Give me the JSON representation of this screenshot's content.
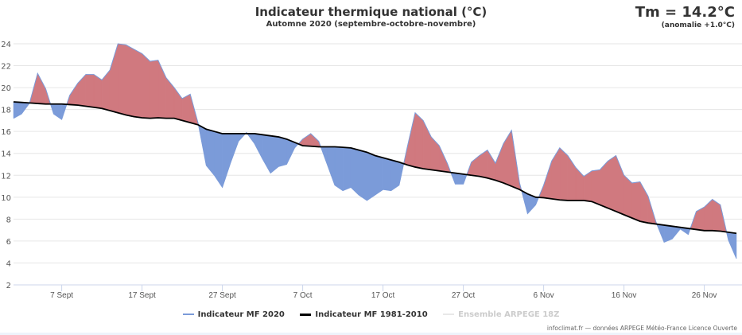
{
  "header": {
    "title": "Indicateur thermique national (°C)",
    "subtitle": "Automne 2020 (septembre-octobre-novembre)",
    "tm_label": "Tm = 14.2°C",
    "anomaly_label": "(anomalie +1.0°C)"
  },
  "legend": [
    {
      "label": "Indicateur MF 2020",
      "color": "#7b9bd9",
      "text_color": "#333333"
    },
    {
      "label": "Indicateur MF 1981-2010",
      "color": "#000000",
      "text_color": "#333333"
    },
    {
      "label": "Ensemble ARPEGE 18Z",
      "color": "#e8e8e8",
      "text_color": "#cccccc"
    }
  ],
  "credits": "infoclimat.fr — données ARPEGE Météo-France Licence Ouverte",
  "colors": {
    "above": "#d0797f",
    "below": "#7b9bd9",
    "normal_line": "#000000",
    "grid": "#e6e6e6"
  },
  "chart_data": {
    "type": "area",
    "title": "Indicateur thermique national (°C)",
    "subtitle": "Automne 2020 (septembre-octobre-novembre)",
    "xlabel": "",
    "ylabel": "",
    "ylim": [
      2,
      24
    ],
    "yticks": [
      2,
      4,
      6,
      8,
      10,
      12,
      14,
      16,
      18,
      20,
      22,
      24
    ],
    "x_start": "1 Sept",
    "x_day_count": 91,
    "xticks": [
      {
        "day": 7,
        "label": "7 Sept"
      },
      {
        "day": 17,
        "label": "17 Sept"
      },
      {
        "day": 27,
        "label": "27 Sept"
      },
      {
        "day": 37,
        "label": "7 Oct"
      },
      {
        "day": 47,
        "label": "17 Oct"
      },
      {
        "day": 57,
        "label": "27 Oct"
      },
      {
        "day": 67,
        "label": "6 Nov"
      },
      {
        "day": 77,
        "label": "16 Nov"
      },
      {
        "day": 87,
        "label": "26 Nov"
      }
    ],
    "grid": true,
    "legend_position": "bottom",
    "series": [
      {
        "name": "Indicateur MF 2020",
        "values": [
          17.2,
          17.6,
          18.6,
          21.3,
          19.9,
          17.6,
          17.1,
          19.3,
          20.4,
          21.2,
          21.2,
          20.7,
          21.6,
          24.0,
          23.9,
          23.5,
          23.1,
          22.4,
          22.5,
          20.9,
          20.0,
          19.0,
          19.4,
          16.7,
          12.9,
          12.0,
          10.9,
          13.1,
          15.1,
          15.9,
          14.9,
          13.5,
          12.2,
          12.8,
          13.0,
          14.5,
          15.3,
          15.8,
          15.1,
          13.1,
          11.1,
          10.6,
          10.9,
          10.2,
          9.7,
          10.2,
          10.7,
          10.6,
          11.1,
          14.5,
          17.7,
          17.0,
          15.5,
          14.7,
          13.1,
          11.2,
          11.2,
          13.2,
          13.8,
          14.3,
          13.1,
          14.9,
          16.1,
          11.3,
          8.5,
          9.3,
          11.1,
          13.3,
          14.5,
          13.8,
          12.7,
          11.9,
          12.4,
          12.5,
          13.3,
          13.8,
          12.0,
          11.3,
          11.4,
          10.1,
          7.7,
          5.9,
          6.2,
          7.1,
          6.6,
          8.7,
          9.1,
          9.8,
          9.3,
          6.1,
          4.4
        ]
      },
      {
        "name": "Indicateur MF 1981-2010",
        "values": [
          18.7,
          18.65,
          18.6,
          18.55,
          18.5,
          18.5,
          18.5,
          18.45,
          18.4,
          18.3,
          18.2,
          18.1,
          17.9,
          17.7,
          17.5,
          17.35,
          17.25,
          17.2,
          17.25,
          17.2,
          17.2,
          17.0,
          16.8,
          16.6,
          16.2,
          16.0,
          15.8,
          15.8,
          15.8,
          15.8,
          15.8,
          15.7,
          15.6,
          15.5,
          15.3,
          15.0,
          14.7,
          14.65,
          14.6,
          14.6,
          14.6,
          14.55,
          14.5,
          14.3,
          14.1,
          13.8,
          13.6,
          13.4,
          13.2,
          12.95,
          12.75,
          12.6,
          12.5,
          12.4,
          12.3,
          12.2,
          12.1,
          12.0,
          11.9,
          11.75,
          11.55,
          11.3,
          11.0,
          10.7,
          10.3,
          10.0,
          9.95,
          9.85,
          9.75,
          9.7,
          9.7,
          9.7,
          9.6,
          9.3,
          9.0,
          8.7,
          8.4,
          8.1,
          7.8,
          7.65,
          7.55,
          7.45,
          7.35,
          7.25,
          7.15,
          7.05,
          6.95,
          6.95,
          6.9,
          6.8,
          6.7
        ]
      },
      {
        "name": "Ensemble ARPEGE 18Z",
        "values": []
      }
    ]
  }
}
